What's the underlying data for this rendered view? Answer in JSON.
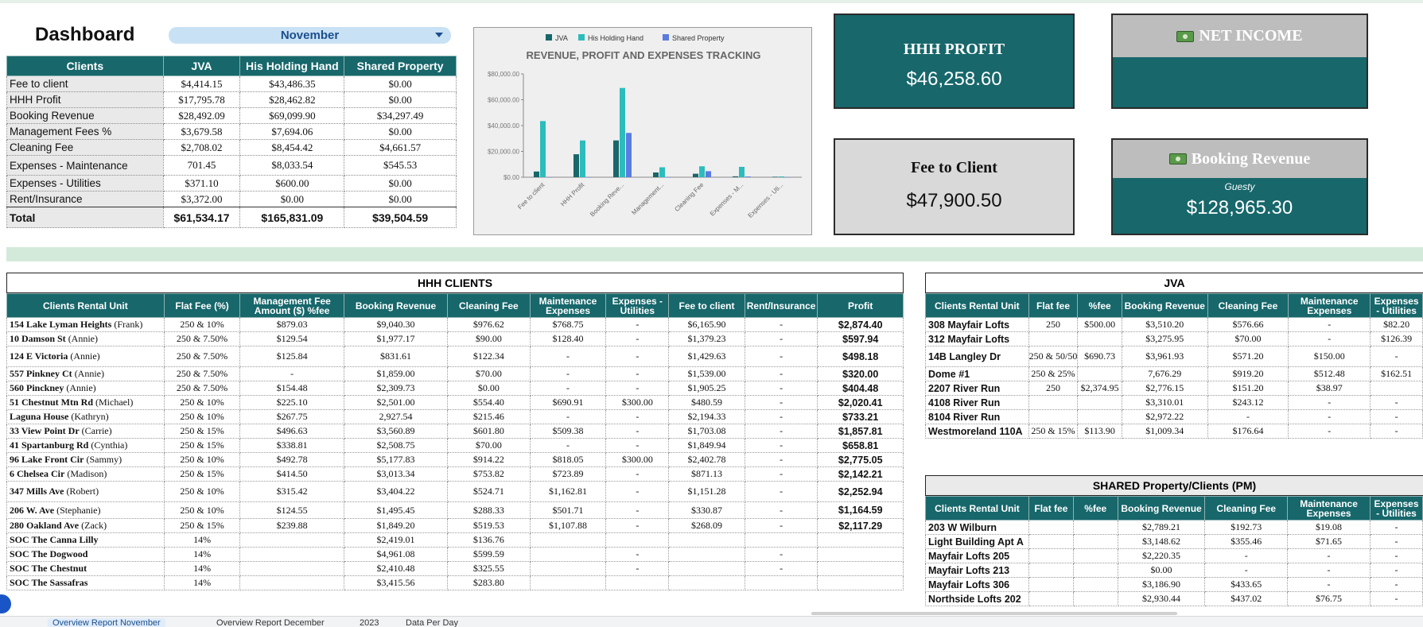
{
  "dashboard": {
    "title": "Dashboard",
    "month": "November"
  },
  "summary": {
    "headers": [
      "Clients",
      "JVA",
      "His Holding Hand",
      "Shared Property"
    ],
    "rows": [
      {
        "label": "Fee to client",
        "jva": "$4,414.15",
        "hhh": "$43,486.35",
        "shared": "$0.00"
      },
      {
        "label": "HHH Profit",
        "jva": "$17,795.78",
        "hhh": "$28,462.82",
        "shared": "$0.00"
      },
      {
        "label": "Booking  Revenue",
        "jva": "$28,492.09",
        "hhh": "$69,099.90",
        "shared": "$34,297.49"
      },
      {
        "label": "Management Fees %",
        "jva": "$3,679.58",
        "hhh": "$7,694.06",
        "shared": "$0.00"
      },
      {
        "label": "Cleaning Fee",
        "jva": "$2,708.02",
        "hhh": "$8,454.42",
        "shared": "$4,661.57"
      },
      {
        "label": "Expenses - Maintenance",
        "jva": "701.45",
        "hhh": "$8,033.54",
        "shared": "$545.53"
      },
      {
        "label": "Expenses - Utilities",
        "jva": "$371.10",
        "hhh": "$600.00",
        "shared": "$0.00"
      },
      {
        "label": "Rent/Insurance",
        "jva": "$3,372.00",
        "hhh": "$0.00",
        "shared": "$0.00"
      }
    ],
    "total": {
      "label": "Total",
      "jva": "$61,534.17",
      "hhh": "$165,831.09",
      "shared": "$39,504.59"
    }
  },
  "chart_data": {
    "type": "bar",
    "title": "REVENUE, PROFIT AND EXPENSES TRACKING",
    "categories": [
      "Fee to client",
      "HHH Profit",
      "Booking  Reve...",
      "Management...",
      "Cleaning Fee",
      "Expenses - M...",
      "Expenses - Uti..."
    ],
    "series": [
      {
        "name": "JVA",
        "color": "#17676b",
        "values": [
          4414.15,
          17795.78,
          28492.09,
          3679.58,
          2708.02,
          701.45,
          371.1
        ]
      },
      {
        "name": "His Holding Hand",
        "color": "#2cbcbc",
        "values": [
          43486.35,
          28462.82,
          69099.9,
          7694.06,
          8454.42,
          8033.54,
          600.0
        ]
      },
      {
        "name": "Shared Property",
        "color": "#5a7ce0",
        "values": [
          0,
          0,
          34297.49,
          0,
          4661.57,
          545.53,
          0
        ]
      }
    ],
    "y_ticks": [
      "$0.00",
      "$20,000.00",
      "$40,000.00",
      "$60,000.00",
      "$80,000.00"
    ],
    "ylim": [
      0,
      80000
    ],
    "legend": "top"
  },
  "cards": {
    "hhh_profit": {
      "title": "HHH PROFIT",
      "value": "$46,258.60"
    },
    "net_income": {
      "title": "NET INCOME",
      "value": ""
    },
    "fee_to_client": {
      "title": "Fee to Client",
      "value": "$47,900.50"
    },
    "booking_revenue": {
      "title": "Booking Revenue",
      "subtitle": "Guesty",
      "value": "$128,965.30"
    },
    "money_icon": "money-icon"
  },
  "hhh_table": {
    "title": "HHH CLIENTS",
    "headers": [
      "Clients Rental Unit",
      "Flat Fee (%)",
      "Management Fee Amount ($) %fee",
      "Booking  Revenue",
      "Cleaning Fee",
      "Maintenance Expenses",
      "Expenses - Utilities",
      "Fee to client",
      "Rent/Insurance",
      "Profit"
    ],
    "rows": [
      {
        "n": "154 Lake Lyman Heights",
        "o": "(Frank)",
        "c": [
          "250 & 10%",
          "$879.03",
          "$9,040.30",
          "$976.62",
          "$768.75",
          "-",
          "$6,165.90",
          "-",
          "$2,874.40"
        ]
      },
      {
        "n": "10 Damson St",
        "o": "(Annie)",
        "c": [
          "250 & 7.50%",
          "$129.54",
          "$1,977.17",
          "$90.00",
          "$128.40",
          "-",
          "$1,379.23",
          "-",
          "$597.94"
        ]
      },
      {
        "n": "124 E Victoria",
        "o": "(Annie)",
        "c": [
          "250 & 7.50%",
          "$125.84",
          "$831.61",
          "$122.34",
          "-",
          "-",
          "$1,429.63",
          "-",
          "$498.18"
        ],
        "tall": true
      },
      {
        "n": "557 Pinkney Ct",
        "o": "(Annie)",
        "c": [
          "250 & 7.50%",
          "-",
          "$1,859.00",
          "$70.00",
          "-",
          "-",
          "$1,539.00",
          "-",
          "$320.00"
        ]
      },
      {
        "n": "560 Pinckney",
        "o": "(Annie)",
        "c": [
          "250 & 7.50%",
          "$154.48",
          "$2,309.73",
          "$0.00",
          "-",
          "-",
          "$1,905.25",
          "-",
          "$404.48"
        ]
      },
      {
        "n": "51 Chestnut Mtn Rd",
        "o": "(Michael)",
        "c": [
          "250 & 10%",
          "$225.10",
          "$2,501.00",
          "$554.40",
          "$690.91",
          "$300.00",
          "$480.59",
          "-",
          "$2,020.41"
        ]
      },
      {
        "n": "Laguna House",
        "o": "(Kathryn)",
        "c": [
          "250 & 10%",
          "$267.75",
          "2,927.54",
          "$215.46",
          "-",
          "-",
          "$2,194.33",
          "-",
          "$733.21"
        ]
      },
      {
        "n": "33 View Point Dr",
        "o": "(Carrie)",
        "c": [
          "250 & 15%",
          "$496.63",
          "$3,560.89",
          "$601.80",
          "$509.38",
          "-",
          "$1,703.08",
          "-",
          "$1,857.81"
        ]
      },
      {
        "n": "41 Spartanburg Rd",
        "o": "(Cynthia)",
        "c": [
          "250 & 15%",
          "$338.81",
          "$2,508.75",
          "$70.00",
          "-",
          "-",
          "$1,849.94",
          "-",
          "$658.81"
        ]
      },
      {
        "n": "96 Lake Front Cir",
        "o": "(Sammy)",
        "c": [
          "250 & 10%",
          "$492.78",
          "$5,177.83",
          "$914.22",
          "$818.05",
          "$300.00",
          "$2,402.78",
          "-",
          "$2,775.05"
        ]
      },
      {
        "n": "6 Chelsea Cir",
        "o": "(Madison)",
        "c": [
          "250 & 15%",
          "$414.50",
          "$3,013.34",
          "$753.82",
          "$723.89",
          "-",
          "$871.13",
          "-",
          "$2,142.21"
        ]
      },
      {
        "n": "347 Mills Ave",
        "o": "(Robert)",
        "c": [
          "250 & 10%",
          "$315.42",
          "$3,404.22",
          "$524.71",
          "$1,162.81",
          "-",
          "$1,151.28",
          "-",
          "$2,252.94"
        ],
        "tall": true
      },
      {
        "n": "206 W. Ave",
        "o": "(Stephanie)",
        "c": [
          "250 & 10%",
          "$124.55",
          "$1,495.45",
          "$288.33",
          "$501.71",
          "-",
          "$330.87",
          "-",
          "$1,164.59"
        ],
        "mid": true
      },
      {
        "n": "280 Oakland Ave",
        "o": "(Zack)",
        "c": [
          "250 & 15%",
          "$239.88",
          "$1,849.20",
          "$519.53",
          "$1,107.88",
          "-",
          "$268.09",
          "-",
          "$2,117.29"
        ]
      },
      {
        "n": "SOC The Canna Lilly",
        "o": "",
        "c": [
          "14%",
          "",
          "$2,419.01",
          "$136.76",
          "",
          "",
          "",
          "",
          ""
        ]
      },
      {
        "n": "SOC The Dogwood",
        "o": "",
        "c": [
          "14%",
          "",
          "$4,961.08",
          "$599.59",
          "",
          "-",
          "",
          "-",
          ""
        ]
      },
      {
        "n": "SOC The Chestnut",
        "o": "",
        "c": [
          "14%",
          "",
          "$2,410.48",
          "$325.55",
          "",
          "-",
          "",
          "-",
          ""
        ]
      },
      {
        "n": "SOC The Sassafras",
        "o": "",
        "c": [
          "14%",
          "",
          "$3,415.56",
          "$283.80",
          "",
          "",
          "",
          "",
          ""
        ]
      }
    ]
  },
  "jva_table": {
    "title": "JVA",
    "headers": [
      "Clients Rental Unit",
      "Flat fee",
      "%fee",
      "Booking  Revenue",
      "Cleaning Fee",
      "Maintenance Expenses",
      "Expenses - Utilities"
    ],
    "rows": [
      {
        "n": "308 Mayfair Lofts",
        "c": [
          "250",
          "$500.00",
          "$3,510.20",
          "$576.66",
          "-",
          "$82.20"
        ]
      },
      {
        "n": "312 Mayfair Lofts",
        "c": [
          "",
          "",
          "$3,275.95",
          "$70.00",
          "-",
          "$126.39"
        ]
      },
      {
        "n": "14B Langley Dr",
        "c": [
          "250 & 50/50",
          "$690.73",
          "$3,961.93",
          "$571.20",
          "$150.00",
          "-"
        ],
        "tall": true
      },
      {
        "n": "Dome #1",
        "c": [
          "250 & 25%",
          "",
          "7,676.29",
          "$919.20",
          "$512.48",
          "$162.51"
        ]
      },
      {
        "n": "2207 River Run",
        "c": [
          "250",
          "$2,374.95",
          "$2,776.15",
          "$151.20",
          "$38.97",
          ""
        ]
      },
      {
        "n": "4108 River Run",
        "c": [
          "",
          "",
          "$3,310.01",
          "$243.12",
          "-",
          "-"
        ]
      },
      {
        "n": "8104 River Run",
        "c": [
          "",
          "",
          "$2,972.22",
          "-",
          "-",
          "-"
        ]
      },
      {
        "n": "Westmoreland 110A",
        "c": [
          "250 & 15%",
          "$113.90",
          "$1,009.34",
          "$176.64",
          "-",
          "-"
        ]
      }
    ]
  },
  "shared_table": {
    "title": "SHARED Property/Clients (PM)",
    "headers": [
      "Clients Rental Unit",
      "Flat fee",
      "%fee",
      "Booking  Revenue",
      "Cleaning Fee",
      "Maintenance Expenses",
      "Expenses - Utilities"
    ],
    "rows": [
      {
        "n": "203 W Wilburn",
        "c": [
          "",
          "",
          "$2,789.21",
          "$192.73",
          "$19.08",
          "-"
        ]
      },
      {
        "n": "Light Building Apt A",
        "c": [
          "",
          "",
          "$3,148.62",
          "$355.46",
          "$71.65",
          "-"
        ]
      },
      {
        "n": "Mayfair Lofts 205",
        "c": [
          "",
          "",
          "$2,220.35",
          "-",
          "-",
          "-"
        ]
      },
      {
        "n": "Mayfair Lofts 213",
        "c": [
          "",
          "",
          "$0.00",
          "-",
          "-",
          "-"
        ]
      },
      {
        "n": "Mayfair Lofts 306",
        "c": [
          "",
          "",
          "$3,186.90",
          "$433.65",
          "-",
          "-"
        ]
      },
      {
        "n": "Northside Lofts 202",
        "c": [
          "",
          "",
          "$2,930.44",
          "$437.02",
          "$76.75",
          "-"
        ]
      }
    ]
  },
  "sheet_tabs": [
    "Overview Report November",
    "Overview Report December",
    "2023",
    "Data Per Day"
  ]
}
